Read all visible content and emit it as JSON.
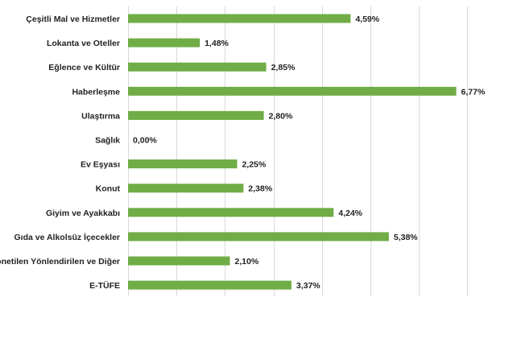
{
  "chart_data": {
    "type": "bar",
    "orientation": "horizontal",
    "categories": [
      "Çeşitli Mal ve Hizmetler",
      "Lokanta ve Oteller",
      "Eğlence ve Kültür",
      "Haberleşme",
      "Ulaştırma",
      "Sağlık",
      "Ev Eşyası",
      "Konut",
      "Giyim ve Ayakkabı",
      "Gıda ve Alkolsüz İçecekler",
      "Yönetilen Yönlendirilen ve Diğer",
      "E-TÜFE"
    ],
    "values": [
      4.59,
      1.48,
      2.85,
      6.77,
      2.8,
      0.0,
      2.25,
      2.38,
      4.24,
      5.38,
      2.1,
      3.37
    ],
    "value_labels": [
      "4,59%",
      "1,48%",
      "2,85%",
      "6,77%",
      "2,80%",
      "0,00%",
      "2,25%",
      "2,38%",
      "4,24%",
      "5,38%",
      "2,10%",
      "3,37%"
    ],
    "xlim": [
      0,
      7
    ],
    "grid": true,
    "bar_color": "#70ad47"
  }
}
